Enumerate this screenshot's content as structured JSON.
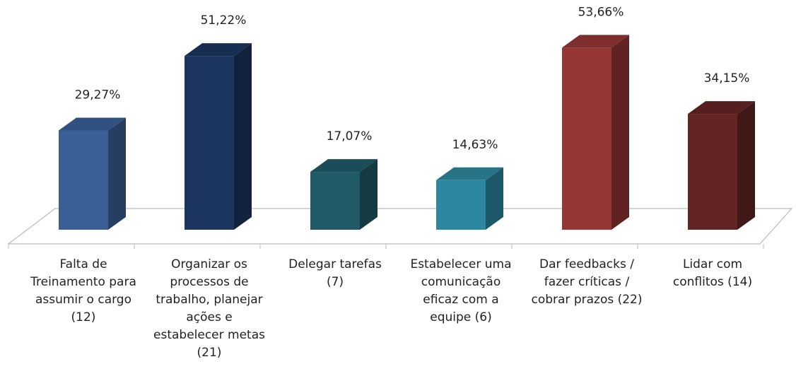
{
  "chart_data": {
    "type": "bar3d",
    "categories": [
      "Falta de Treinamento para assumir o cargo (12)",
      "Organizar os processos de trabalho, planejar ações e estabelecer metas (21)",
      "Delegar tarefas (7)",
      "Estabelecer uma comunicação eficaz com a equipe (6)",
      "Dar feedbacks / fazer críticas / cobrar prazos (22)",
      "Lidar com conflitos (14)"
    ],
    "values": [
      29.27,
      51.22,
      17.07,
      14.63,
      53.66,
      34.15
    ],
    "value_labels": [
      "29,27%",
      "51,22%",
      "17,07%",
      "14,63%",
      "53,66%",
      "34,15%"
    ],
    "colors": [
      "#3a5f96",
      "#1b3560",
      "#1f5a66",
      "#2e87a0",
      "#943634",
      "#632523"
    ]
  }
}
